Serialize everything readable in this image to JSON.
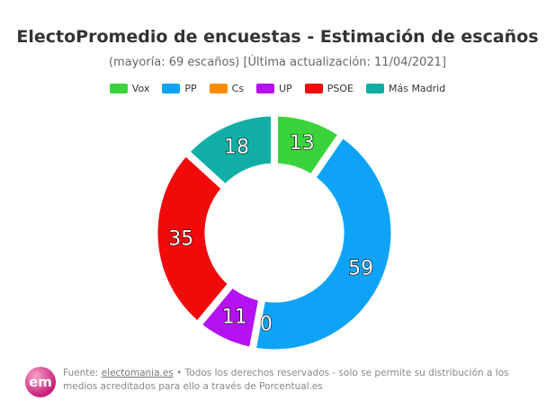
{
  "chart_data": {
    "type": "pie",
    "variant": "donut",
    "title": "ElectoPromedio de encuestas - Estimación de escaños",
    "subtitle": "(mayoría: 69 escaños) [Última actualización: 11/04/2021]",
    "legend_position": "top",
    "categories": [
      "Vox",
      "PP",
      "Cs",
      "UP",
      "PSOE",
      "Más Madrid"
    ],
    "values": [
      13,
      59,
      0,
      11,
      35,
      18
    ],
    "colors": [
      "#3bd33b",
      "#0fa3f7",
      "#ff8c00",
      "#b412f0",
      "#f20a0a",
      "#11aea6"
    ]
  },
  "footer": {
    "logo_text": "em",
    "source_label": "Fuente: ",
    "source_link": "electomania.es",
    "source_rest": " • Todos los derechos reservados - solo se permite su distribución a los medios acreditados para ello a través de Porcentual.es"
  }
}
